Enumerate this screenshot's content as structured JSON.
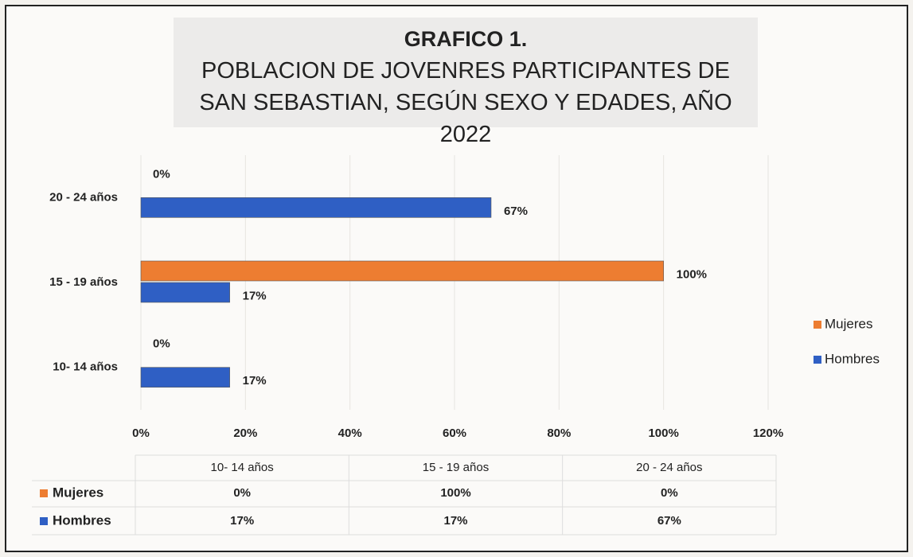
{
  "chart_data": {
    "type": "bar",
    "orientation": "horizontal",
    "title": "GRAFICO 1.",
    "subtitle": "POBLACION DE JOVENRES PARTICIPANTES DE SAN SEBASTIAN, SEGÚN SEXO Y EDADES, AÑO 2022",
    "categories": [
      "10- 14 años",
      "15 - 19 años",
      "20 - 24 años"
    ],
    "series": [
      {
        "name": "Mujeres",
        "color": "#ed7d31",
        "values": [
          0,
          100,
          0
        ],
        "value_labels": [
          "0%",
          "100%",
          "0%"
        ]
      },
      {
        "name": "Hombres",
        "color": "#2f5fc4",
        "values": [
          17,
          17,
          67
        ],
        "value_labels": [
          "17%",
          "17%",
          "67%"
        ]
      }
    ],
    "xlim": [
      0,
      120
    ],
    "xticks": [
      {
        "value": 0,
        "label": "0%"
      },
      {
        "value": 20,
        "label": "20%"
      },
      {
        "value": 40,
        "label": "40%"
      },
      {
        "value": 60,
        "label": "60%"
      },
      {
        "value": 80,
        "label": "80%"
      },
      {
        "value": 100,
        "label": "100%"
      },
      {
        "value": 120,
        "label": "120%"
      }
    ],
    "grid": true,
    "legend": "right",
    "data_table": true
  }
}
